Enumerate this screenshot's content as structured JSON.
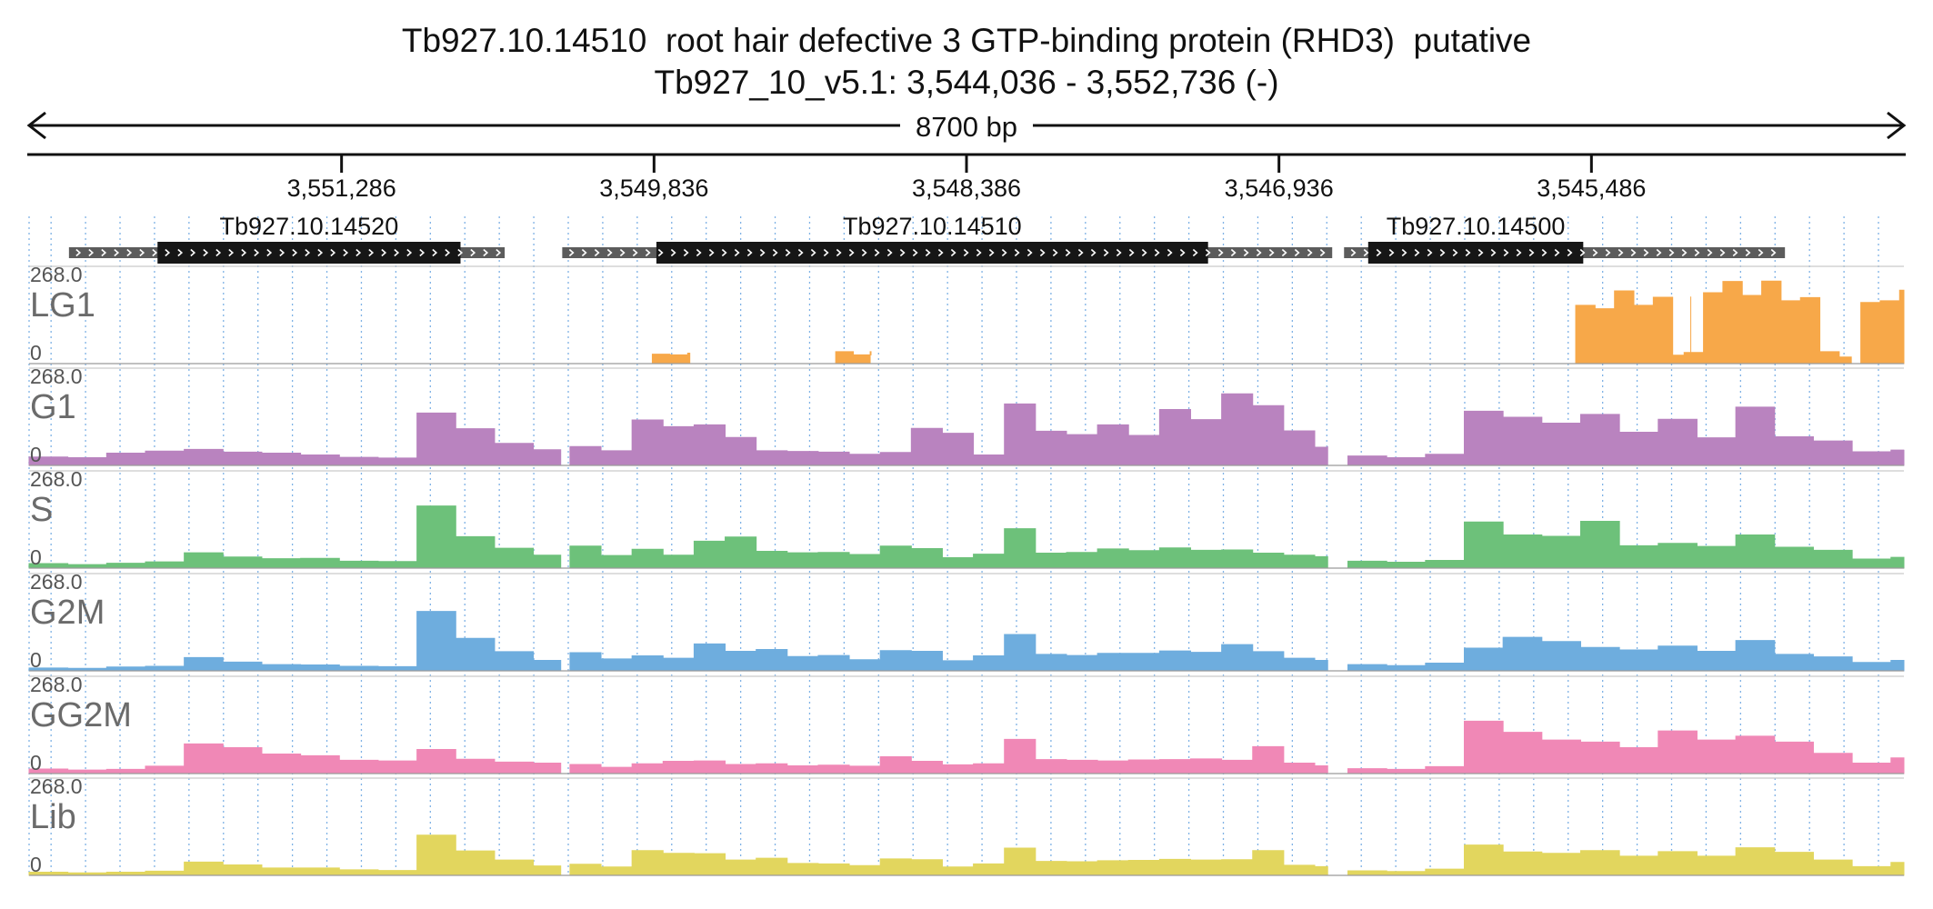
{
  "title": {
    "line1": "Tb927.10.14510  root hair defective 3 GTP-binding protein (RHD3)  putative",
    "line2": "Tb927_10_v5.1: 3,544,036 - 3,552,736 (-)"
  },
  "span_label": "8700 bp",
  "chart_data": {
    "type": "area",
    "title": "Tb927.10.14510  root hair defective 3 GTP-binding protein (RHD3)  putative",
    "subtitle": "Tb927_10_v5.1: 3,544,036 - 3,552,736 (-)",
    "x_axis": {
      "range": [
        3552736,
        3544036
      ],
      "reversed": true,
      "ticks": [
        3551286,
        3549836,
        3548386,
        3546936,
        3545486
      ],
      "tick_labels": [
        "3,551,286",
        "3,549,836",
        "3,548,386",
        "3,546,936",
        "3,545,486"
      ]
    },
    "y_axis": {
      "range": [
        0,
        268.0
      ],
      "max_label": "268.0",
      "min_label": "0"
    },
    "grid": true,
    "genes": [
      {
        "name": "Tb927.10.14520",
        "utr_start": 3552551,
        "utr_end": 3550529,
        "cds_start": 3552140,
        "cds_end": 3550734,
        "strand": "-"
      },
      {
        "name": "Tb927.10.14510",
        "utr_start": 3550262,
        "utr_end": 3546689,
        "cds_start": 3549825,
        "cds_end": 3547265,
        "strand": "-"
      },
      {
        "name": "Tb927.10.14500",
        "utr_start": 3546634,
        "utr_end": 3544588,
        "cds_start": 3546522,
        "cds_end": 3545524,
        "strand": "-"
      }
    ],
    "tracks": [
      {
        "name": "LG1",
        "color": "#F7A849",
        "ymax": 268.0,
        "segments": [
          {
            "x": [
              3549844,
              3549762,
              3549680,
              3549670
            ],
            "y": [
              27,
              25,
              30,
              22
            ]
          },
          {
            "x": [
              3548993,
              3548911,
              3548829,
              3548833
            ],
            "y": [
              34,
              25,
              34,
              22
            ]
          },
          {
            "x": [
              3545559,
              3545469,
              3545379,
              3545289,
              3545199,
              3545109,
              3545025
            ],
            "y": [
              167,
              157,
              208,
              167,
              190,
              24,
              192
            ]
          },
          {
            "x": [
              3545056,
              3544966,
              3544876,
              3544786,
              3544696,
              3544606,
              3544516,
              3544426,
              3544336,
              3544280
            ],
            "y": [
              32,
              203,
              235,
              195,
              236,
              180,
              189,
              34,
              19,
              10
            ]
          },
          {
            "x": [
              3544236,
              3544146,
              3544056,
              3544036
            ],
            "y": [
              175,
              180,
              210,
              140
            ]
          }
        ]
      },
      {
        "name": "G1",
        "color": "#B983BF",
        "ymax": 268.0,
        "segments": [
          {
            "x": [
              3552736,
              3552556,
              3552376,
              3552196,
              3552016,
              3551836,
              3551656,
              3551476,
              3551296,
              3551116,
              3550936,
              3550756,
              3550576,
              3550396,
              3550269
            ],
            "y": [
              24,
              22,
              35,
              41,
              46,
              38,
              35,
              30,
              23,
              21,
              150,
              105,
              63,
              45,
              40
            ]
          },
          {
            "x": [
              3550226,
              3550082,
              3549938,
              3549794,
              3549650,
              3549506,
              3549362,
              3549218,
              3549074,
              3548930,
              3548786,
              3548642,
              3548498,
              3548354,
              3548210,
              3548066,
              3547922,
              3547778,
              3547634,
              3547490,
              3547346,
              3547202,
              3547058,
              3546914,
              3546770,
              3546710
            ],
            "y": [
              54,
              42,
              130,
              111,
              116,
              80,
              42,
              40,
              38,
              32,
              37,
              106,
              92,
              30,
              176,
              98,
              88,
              116,
              86,
              160,
              131,
              205,
              171,
              99,
              52,
              55
            ]
          },
          {
            "x": [
              3546616,
              3546436,
              3546256,
              3546076,
              3545896,
              3545716,
              3545536,
              3545356,
              3545176,
              3544996,
              3544816,
              3544636,
              3544456,
              3544276,
              3544096,
              3544036
            ],
            "y": [
              27,
              22,
              32,
              155,
              138,
              121,
              146,
              95,
              132,
              79,
              167,
              82,
              70,
              39,
              44,
              45
            ]
          }
        ]
      },
      {
        "name": "S",
        "color": "#6DC17A",
        "ymax": 268.0,
        "segments": [
          {
            "x": [
              3552736,
              3552556,
              3552376,
              3552196,
              3552016,
              3551836,
              3551656,
              3551476,
              3551296,
              3551116,
              3550936,
              3550756,
              3550576,
              3550396,
              3550269
            ],
            "y": [
              13,
              10,
              14,
              18,
              44,
              32,
              27,
              28,
              20,
              19,
              178,
              90,
              57,
              37,
              31
            ]
          },
          {
            "x": [
              3550226,
              3550082,
              3549938,
              3549794,
              3549650,
              3549506,
              3549362,
              3549218,
              3549074,
              3548930,
              3548786,
              3548642,
              3548498,
              3548354,
              3548210,
              3548066,
              3547922,
              3547778,
              3547634,
              3547490,
              3547346,
              3547202,
              3547058,
              3546914,
              3546770,
              3546710
            ],
            "y": [
              63,
              36,
              54,
              37,
              77,
              89,
              48,
              44,
              45,
              39,
              63,
              56,
              30,
              40,
              113,
              43,
              45,
              55,
              50,
              58,
              51,
              52,
              43,
              37,
              33,
              24
            ]
          },
          {
            "x": [
              3546616,
              3546436,
              3546256,
              3546076,
              3545896,
              3545716,
              3545536,
              3545356,
              3545176,
              3544996,
              3544816,
              3544636,
              3544456,
              3544276,
              3544096,
              3544036
            ],
            "y": [
              20,
              17,
              22,
              132,
              95,
              91,
              134,
              64,
              71,
              62,
              95,
              60,
              51,
              26,
              31,
              28
            ]
          }
        ]
      },
      {
        "name": "G2M",
        "color": "#6EADDE",
        "ymax": 268.0,
        "segments": [
          {
            "x": [
              3552736,
              3552556,
              3552376,
              3552196,
              3552016,
              3551836,
              3551656,
              3551476,
              3551296,
              3551116,
              3550936,
              3550756,
              3550576,
              3550396,
              3550269
            ],
            "y": [
              8,
              7,
              11,
              13,
              38,
              25,
              18,
              17,
              13,
              12,
              170,
              93,
              55,
              30,
              25
            ]
          },
          {
            "x": [
              3550226,
              3550082,
              3549938,
              3549794,
              3549650,
              3549506,
              3549362,
              3549218,
              3549074,
              3548930,
              3548786,
              3548642,
              3548498,
              3548354,
              3548210,
              3548066,
              3547922,
              3547778,
              3547634,
              3547490,
              3547346,
              3547202,
              3547058,
              3546914,
              3546770,
              3546710
            ],
            "y": [
              52,
              34,
              43,
              36,
              77,
              56,
              61,
              41,
              44,
              32,
              58,
              56,
              29,
              43,
              104,
              47,
              44,
              50,
              50,
              57,
              53,
              75,
              55,
              36,
              30,
              21
            ]
          },
          {
            "x": [
              3546616,
              3546436,
              3546256,
              3546076,
              3545896,
              3545716,
              3545536,
              3545356,
              3545176,
              3544996,
              3544816,
              3544636,
              3544456,
              3544276,
              3544096,
              3544036
            ],
            "y": [
              18,
              15,
              22,
              65,
              96,
              84,
              67,
              60,
              71,
              56,
              87,
              47,
              40,
              24,
              30,
              25
            ]
          }
        ]
      },
      {
        "name": "GG2M",
        "color": "#F088B6",
        "ymax": 268.0,
        "segments": [
          {
            "x": [
              3552736,
              3552556,
              3552376,
              3552196,
              3552016,
              3551836,
              3551656,
              3551476,
              3551296,
              3551116,
              3550936,
              3550756,
              3550576,
              3550396,
              3550269
            ],
            "y": [
              13,
              10,
              12,
              21,
              85,
              74,
              56,
              51,
              38,
              36,
              69,
              41,
              33,
              30,
              27
            ]
          },
          {
            "x": [
              3550226,
              3550082,
              3549938,
              3549794,
              3549650,
              3549506,
              3549362,
              3549218,
              3549074,
              3548930,
              3548786,
              3548642,
              3548498,
              3548354,
              3548210,
              3548066,
              3547922,
              3547778,
              3547634,
              3547490,
              3547346,
              3547202,
              3547058,
              3546914,
              3546770,
              3546710
            ],
            "y": [
              26,
              18,
              28,
              35,
              36,
              26,
              28,
              22,
              24,
              21,
              48,
              35,
              25,
              28,
              98,
              40,
              38,
              36,
              39,
              40,
              42,
              38,
              77,
              30,
              22,
              18
            ]
          },
          {
            "x": [
              3546616,
              3546436,
              3546256,
              3546076,
              3545896,
              3545716,
              3545536,
              3545356,
              3545176,
              3544996,
              3544816,
              3544636,
              3544456,
              3544276,
              3544096,
              3544036
            ],
            "y": [
              14,
              12,
              20,
              150,
              118,
              96,
              90,
              74,
              122,
              96,
              107,
              90,
              58,
              30,
              45,
              40
            ]
          }
        ]
      },
      {
        "name": "Lib",
        "color": "#E2D65E",
        "ymax": 268.0,
        "segments": [
          {
            "x": [
              3552736,
              3552556,
              3552376,
              3552196,
              3552016,
              3551836,
              3551656,
              3551476,
              3551296,
              3551116,
              3550936,
              3550756,
              3550576,
              3550396,
              3550269
            ],
            "y": [
              9,
              7,
              9,
              12,
              38,
              30,
              21,
              21,
              16,
              14,
              115,
              70,
              44,
              27,
              22
            ]
          },
          {
            "x": [
              3550226,
              3550082,
              3549938,
              3549794,
              3549650,
              3549506,
              3549362,
              3549218,
              3549074,
              3548930,
              3548786,
              3548642,
              3548498,
              3548354,
              3548210,
              3548066,
              3547922,
              3547778,
              3547634,
              3547490,
              3547346,
              3547202,
              3547058,
              3546914,
              3546770,
              3546710
            ],
            "y": [
              32,
              24,
              71,
              63,
              62,
              44,
              49,
              34,
              33,
              28,
              47,
              45,
              24,
              33,
              78,
              40,
              39,
              42,
              43,
              46,
              44,
              45,
              71,
              29,
              25,
              17
            ]
          },
          {
            "x": [
              3546616,
              3546436,
              3546256,
              3546076,
              3545896,
              3545716,
              3545536,
              3545356,
              3545176,
              3544996,
              3544816,
              3544636,
              3544456,
              3544276,
              3544096,
              3544036
            ],
            "y": [
              13,
              11,
              18,
              87,
              67,
              63,
              71,
              55,
              68,
              55,
              79,
              66,
              44,
              25,
              37,
              33
            ]
          }
        ]
      }
    ]
  }
}
